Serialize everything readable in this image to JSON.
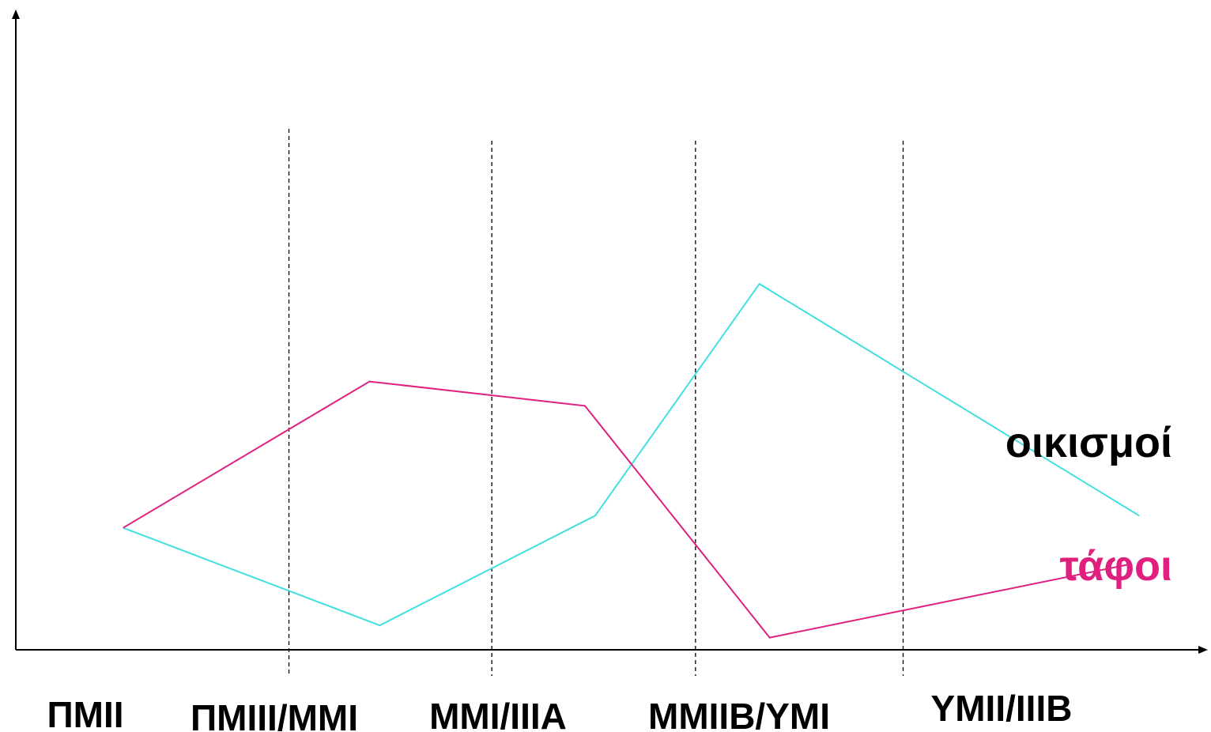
{
  "chart_data": {
    "type": "line",
    "periods": [
      "ΠΜΙΙ",
      "ΠΜΙΙΙ/ΜΜΙ",
      "ΜΜΙ/ΙΙΙΑ",
      "ΜΜΙΙΒ/ΥΜΙ",
      "ΥΜΙΙ/ΙΙΙΒ"
    ],
    "series": [
      {
        "name": "οικισμοί",
        "color": "#40e0e0",
        "points": [
          {
            "x": 0.2,
            "y": 20
          },
          {
            "x": 1.45,
            "y": 4
          },
          {
            "x": 2.5,
            "y": 22
          },
          {
            "x": 3.3,
            "y": 60
          },
          {
            "x": 5.15,
            "y": 22
          }
        ]
      },
      {
        "name": "τάφοι",
        "color": "#e0207f",
        "points": [
          {
            "x": 0.2,
            "y": 20
          },
          {
            "x": 1.4,
            "y": 44
          },
          {
            "x": 2.45,
            "y": 40
          },
          {
            "x": 3.35,
            "y": 2
          },
          {
            "x": 5.1,
            "y": 14
          }
        ]
      }
    ],
    "period_boundaries": [
      1,
      2,
      3,
      4
    ],
    "xlim": [
      -0.4,
      5.5
    ],
    "ylim": [
      0,
      105
    ],
    "axes": {
      "x_arrow": true,
      "y_arrow": true,
      "ticks": false
    },
    "grid": false,
    "boundary_style": "dashed"
  }
}
